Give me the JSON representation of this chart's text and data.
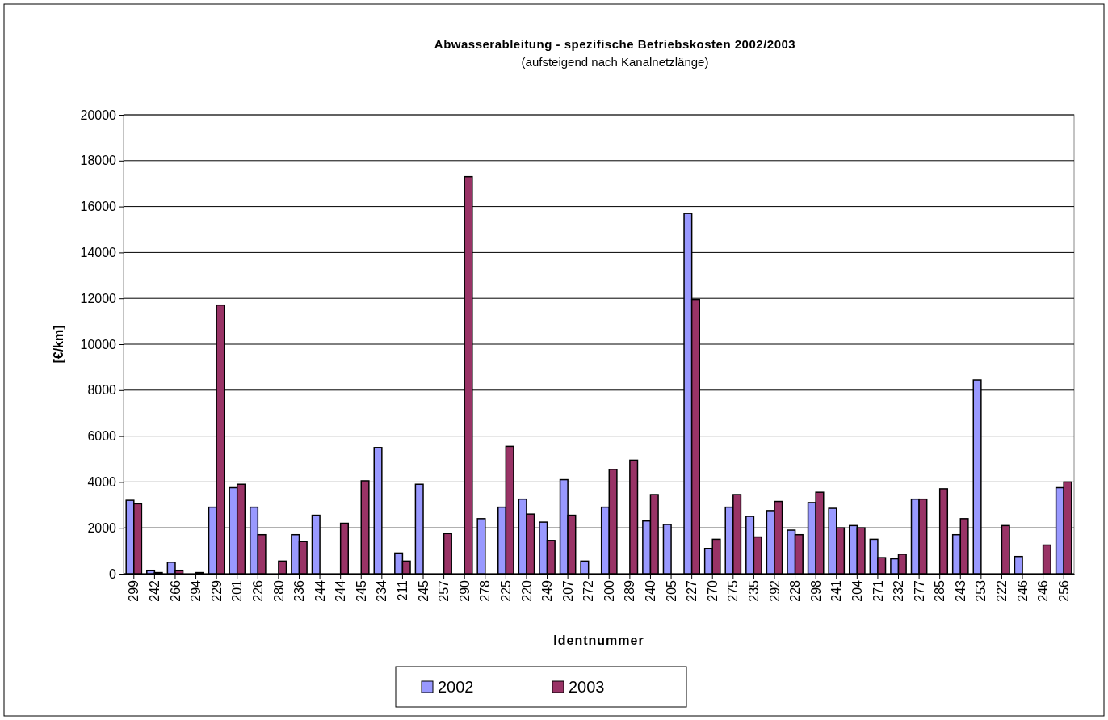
{
  "chart_data": {
    "type": "bar",
    "title": "Abwasserableitung - spezifische Betriebskosten 2002/2003",
    "subtitle": "(aufsteigend nach Kanalnetzlänge)",
    "xlabel": "Identnummer",
    "ylabel": "[€/km]",
    "categories": [
      "299",
      "242",
      "266",
      "294",
      "229",
      "201",
      "226",
      "280",
      "236",
      "244",
      "244",
      "245",
      "234",
      "211",
      "245",
      "257",
      "290",
      "278",
      "225",
      "220",
      "249",
      "207",
      "272",
      "200",
      "289",
      "240",
      "205",
      "227",
      "270",
      "275",
      "235",
      "292",
      "228",
      "298",
      "241",
      "204",
      "271",
      "232",
      "277",
      "285",
      "243",
      "253",
      "222",
      "246",
      "246",
      "256"
    ],
    "series": [
      {
        "name": "2002",
        "color": "#9999ff",
        "values": [
          3200,
          150,
          500,
          null,
          2900,
          3750,
          2900,
          null,
          1700,
          2550,
          null,
          null,
          5500,
          900,
          3900,
          null,
          null,
          2400,
          2900,
          3250,
          2250,
          4100,
          550,
          2900,
          null,
          2300,
          2150,
          15700,
          1100,
          2900,
          2500,
          2750,
          1900,
          3100,
          2850,
          2100,
          1500,
          650,
          3250,
          null,
          1700,
          8450,
          null,
          750,
          null,
          3750
        ]
      },
      {
        "name": "2003",
        "color": "#993366",
        "values": [
          3050,
          50,
          150,
          50,
          11700,
          3900,
          1700,
          550,
          1400,
          null,
          2200,
          4050,
          null,
          550,
          null,
          1750,
          17300,
          null,
          5550,
          2600,
          1450,
          2550,
          null,
          4550,
          4950,
          3450,
          null,
          11950,
          1500,
          3450,
          1600,
          3150,
          1700,
          3550,
          2000,
          2000,
          700,
          850,
          3250,
          3700,
          2400,
          null,
          2100,
          null,
          1250,
          4000
        ]
      }
    ],
    "ylim": [
      0,
      20000
    ],
    "yticks": [
      0,
      2000,
      4000,
      6000,
      8000,
      10000,
      12000,
      14000,
      16000,
      18000,
      20000
    ],
    "grid": "y",
    "legend": "bottom"
  }
}
